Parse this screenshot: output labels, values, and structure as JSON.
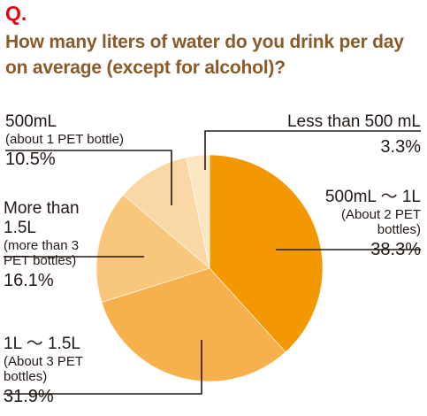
{
  "header": {
    "q_mark": "Q.",
    "question": "How many liters of water do you drink per day on average (except for alcohol)?"
  },
  "chart_data": {
    "type": "pie",
    "start_angle_deg": 0,
    "direction": "clockwise",
    "slices": [
      {
        "label": "500mL ～ 1L",
        "sublabel": "(About 2 PET bottles)",
        "value": 38.3,
        "value_text": "38.3%",
        "color": "#f39800"
      },
      {
        "label": "1L ～ 1.5L",
        "sublabel": "(About 3 PET bottles)",
        "value": 31.9,
        "value_text": "31.9%",
        "color": "#f6b14d"
      },
      {
        "label": "More than 1.5L",
        "sublabel": "(more than 3 PET bottles)",
        "value": 16.1,
        "value_text": "16.1%",
        "color": "#f8c77c"
      },
      {
        "label": "500mL",
        "sublabel": "(about 1 PET bottle)",
        "value": 10.5,
        "value_text": "10.5%",
        "color": "#fad8a5"
      },
      {
        "label": "Less than 500 mL",
        "sublabel": "",
        "value": 3.3,
        "value_text": "3.3%",
        "color": "#fce5c3"
      }
    ]
  }
}
